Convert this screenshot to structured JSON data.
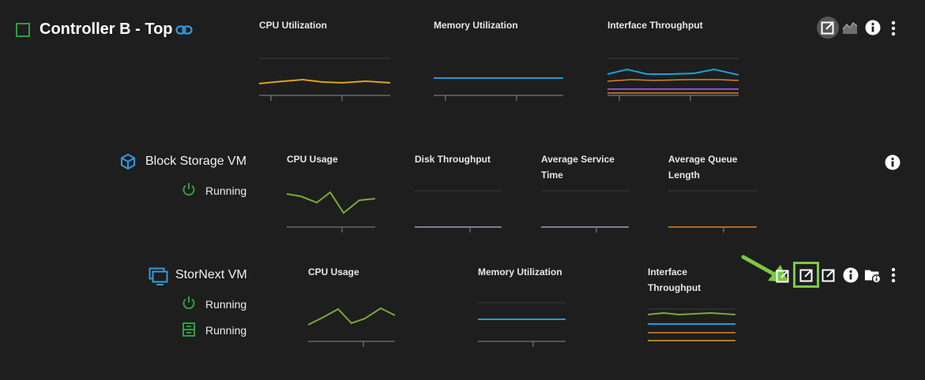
{
  "controller": {
    "title": "Controller B - Top",
    "charts": [
      {
        "label": "CPU Utilization"
      },
      {
        "label": "Memory Utilization"
      },
      {
        "label": "Interface Throughput"
      }
    ]
  },
  "block_vm": {
    "title": "Block Storage VM",
    "status": "Running",
    "charts": [
      {
        "label": "CPU Usage"
      },
      {
        "label": "Disk Throughput"
      },
      {
        "label": "Average Service Time"
      },
      {
        "label": "Average Queue Length"
      }
    ]
  },
  "stornext_vm": {
    "title": "StorNext VM",
    "status_power": "Running",
    "status_storage": "Running",
    "charts": [
      {
        "label": "CPU Usage"
      },
      {
        "label": "Memory Utilization"
      },
      {
        "label": "Interface Throughput"
      }
    ]
  },
  "colors": {
    "accent_green": "#2e9e3e",
    "link_blue": "#2f9be0",
    "highlight_green": "#7ac943",
    "cpu_orange": "#e0a020",
    "memory_blue": "#1aa0d8",
    "usage_green": "#7ba83a",
    "throughput_orange": "#d9822b",
    "throughput_purple": "#8a4fbf",
    "disk_gray": "#8fa3b8"
  },
  "icons": [
    "square-status-icon",
    "link-icon",
    "external-link-icon",
    "area-chart-icon",
    "info-icon",
    "more-vertical-icon",
    "cube-icon",
    "power-icon",
    "monitor-icon",
    "server-icon",
    "folder-info-icon",
    "arrow-pointer"
  ]
}
